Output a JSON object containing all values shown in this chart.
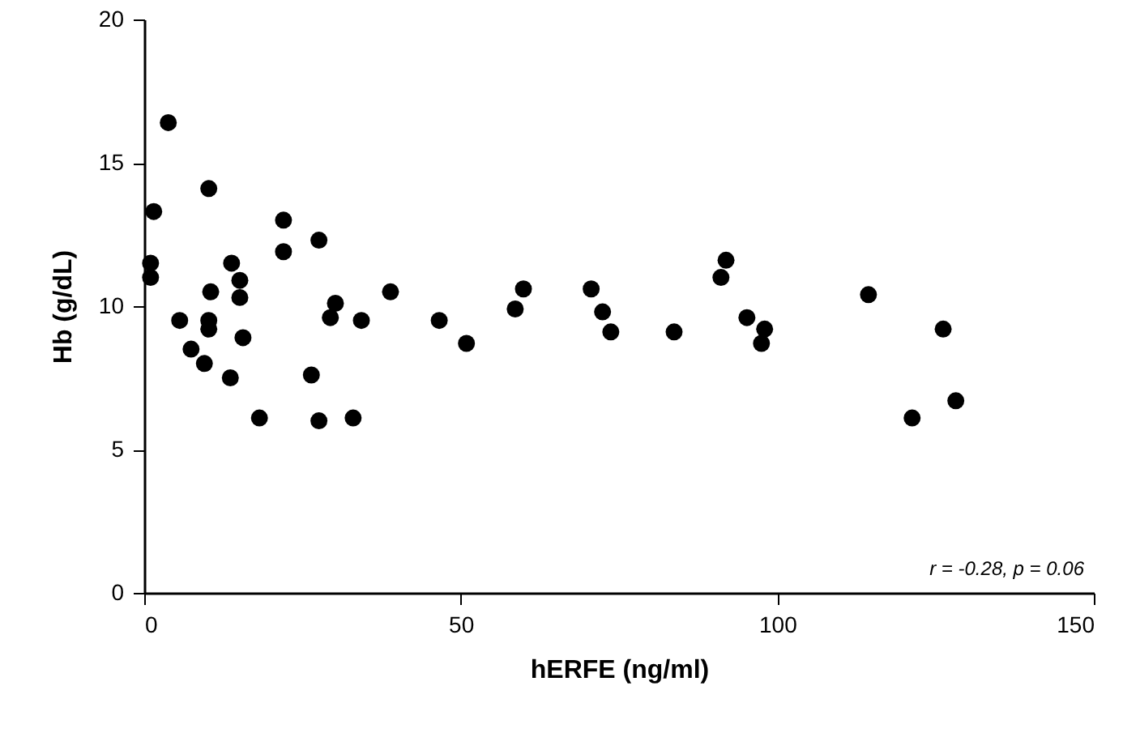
{
  "chart_data": {
    "type": "scatter",
    "xlabel": "hERFE (ng/ml)",
    "ylabel": "Hb (g/dL)",
    "x": [
      1,
      1,
      1.5,
      3.8,
      5.6,
      7.4,
      9.5,
      10.2,
      10.2,
      10.2,
      10.5,
      13.6,
      13.8,
      15.1,
      15.1,
      15.6,
      18.2,
      22,
      22,
      26.4,
      27.6,
      27.6,
      29.4,
      30.2,
      33,
      34.3,
      38.9,
      46.6,
      50.9,
      58.6,
      59.9,
      70.6,
      72.4,
      73.7,
      83.7,
      91.1,
      91.9,
      95.2,
      97.5,
      98,
      114.4,
      121.3,
      126.2,
      128.2
    ],
    "values": [
      11.0,
      11.5,
      13.3,
      16.4,
      9.5,
      8.5,
      8.0,
      14.1,
      9.5,
      9.2,
      10.5,
      7.5,
      11.5,
      10.9,
      10.3,
      8.9,
      6.1,
      13.0,
      11.9,
      7.6,
      12.3,
      6.0,
      9.6,
      10.1,
      6.1,
      9.5,
      10.5,
      9.5,
      8.7,
      9.9,
      10.6,
      10.6,
      9.8,
      9.1,
      9.1,
      11.0,
      11.6,
      9.6,
      8.7,
      9.2,
      10.4,
      6.1,
      9.2,
      6.7
    ],
    "color": "#000000",
    "marker": "circle",
    "xlim": [
      0,
      150
    ],
    "xticks": [
      0,
      50,
      100,
      150
    ],
    "ylim": [
      0,
      20
    ],
    "yticks": [
      0,
      5,
      10,
      15,
      20
    ],
    "grid": false,
    "annotations": [
      "r = -0.28, p = 0.06"
    ]
  }
}
